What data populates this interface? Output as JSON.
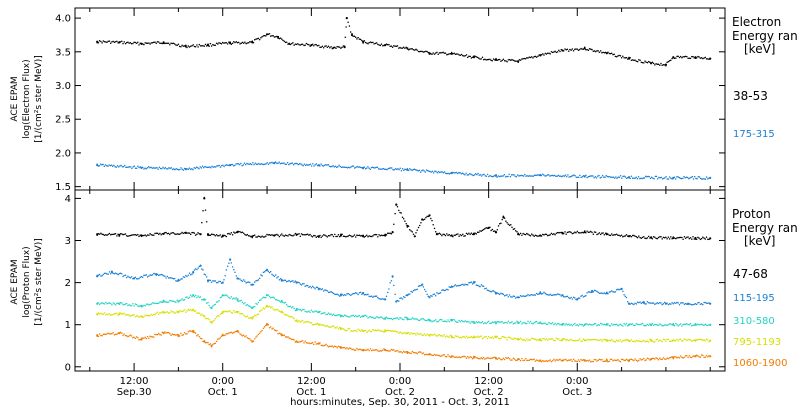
{
  "figure": {
    "xlabel": "hours:minutes, Sep. 30, 2011 - Oct. 3, 2011",
    "x_ticks": [
      {
        "time": "12:00",
        "date": "Sep.30"
      },
      {
        "time": "0:00",
        "date": "Oct. 1"
      },
      {
        "time": "12:00",
        "date": "Oct. 1"
      },
      {
        "time": "0:00",
        "date": "Oct. 2"
      },
      {
        "time": "12:00",
        "date": "Oct. 2"
      },
      {
        "time": "0:00",
        "date": "Oct. 3"
      }
    ]
  },
  "chart_data": [
    {
      "type": "scatter",
      "panel": "electron",
      "ylabel": [
        "ACE EPAM",
        "log(Electron Flux)",
        "[1/(cm²s ster MeV)]"
      ],
      "legend_title": [
        "Electron",
        "Energy ran",
        "[keV]"
      ],
      "x_unit": "hours since 2011-09-30 00:00",
      "xlim": [
        4,
        92
      ],
      "ylim": [
        1.45,
        4.15
      ],
      "yticks": [
        1.5,
        2.0,
        2.5,
        3.0,
        3.5,
        4.0
      ],
      "ytick_labels": [
        "1.5",
        "2.0",
        "2.5",
        "3.0",
        "3.5",
        "4.0"
      ],
      "series": [
        {
          "name": "38-53",
          "color": "#000000",
          "x": [
            7,
            10,
            13,
            16,
            19,
            22,
            25,
            28,
            30,
            31.5,
            33,
            36,
            39,
            40.5,
            40.8,
            41.5,
            43,
            46,
            49,
            52,
            55,
            58,
            61,
            64,
            67,
            70,
            73,
            76,
            79,
            82,
            84,
            85,
            88,
            90
          ],
          "y": [
            3.65,
            3.64,
            3.62,
            3.64,
            3.58,
            3.6,
            3.63,
            3.64,
            3.76,
            3.72,
            3.62,
            3.6,
            3.56,
            3.57,
            4.0,
            3.75,
            3.65,
            3.6,
            3.55,
            3.48,
            3.47,
            3.42,
            3.38,
            3.36,
            3.45,
            3.52,
            3.55,
            3.48,
            3.4,
            3.33,
            3.31,
            3.42,
            3.42,
            3.4
          ]
        },
        {
          "name": "175-315",
          "color": "#1b7fd4",
          "x": [
            7,
            13,
            19,
            25,
            31,
            37,
            43,
            49,
            55,
            61,
            67,
            73,
            79,
            85,
            90
          ],
          "y": [
            1.82,
            1.78,
            1.76,
            1.82,
            1.85,
            1.82,
            1.78,
            1.75,
            1.7,
            1.66,
            1.67,
            1.65,
            1.64,
            1.63,
            1.63
          ]
        }
      ]
    },
    {
      "type": "scatter",
      "panel": "proton",
      "ylabel": [
        "ACE EPAM",
        "log(Proton Flux)",
        "[1/(cm²s ster MeV)]"
      ],
      "legend_title": [
        "Proton",
        "Energy ran",
        "[keV]"
      ],
      "x_unit": "hours since 2011-09-30 00:00",
      "xlim": [
        4,
        92
      ],
      "ylim": [
        -0.1,
        4.2
      ],
      "yticks": [
        0,
        1,
        2,
        3,
        4
      ],
      "ytick_labels": [
        "0",
        "1",
        "2",
        "3",
        "4"
      ],
      "series": [
        {
          "name": "47-68",
          "color": "#000000",
          "x": [
            7,
            10,
            13,
            16,
            19,
            21,
            21.5,
            22,
            24,
            26,
            28,
            31,
            34,
            37,
            40,
            43,
            46,
            47,
            47.5,
            49,
            50,
            51,
            52,
            53,
            55,
            58,
            60,
            61,
            62,
            64,
            67,
            70,
            73,
            76,
            79,
            82,
            85,
            88,
            90
          ],
          "y": [
            3.15,
            3.13,
            3.12,
            3.16,
            3.18,
            3.15,
            4.0,
            3.15,
            3.1,
            3.2,
            3.1,
            3.12,
            3.14,
            3.1,
            3.12,
            3.1,
            3.12,
            3.2,
            3.85,
            3.35,
            3.1,
            3.5,
            3.6,
            3.15,
            3.12,
            3.15,
            3.3,
            3.2,
            3.55,
            3.15,
            3.12,
            3.18,
            3.2,
            3.15,
            3.1,
            3.07,
            3.06,
            3.06,
            3.05
          ]
        },
        {
          "name": "115-195",
          "color": "#1b7fd4",
          "x": [
            7,
            9,
            12,
            15,
            18,
            20,
            21,
            22,
            24,
            25,
            26,
            28,
            30,
            32,
            34,
            37,
            40,
            43,
            46,
            47,
            47.5,
            49,
            51,
            52,
            55,
            58,
            61,
            64,
            67,
            70,
            72,
            74,
            76,
            78,
            79,
            81,
            84,
            87,
            90
          ],
          "y": [
            2.15,
            2.25,
            2.1,
            2.2,
            2.05,
            2.25,
            2.4,
            2.05,
            2.0,
            2.55,
            2.1,
            1.95,
            2.3,
            2.05,
            2.0,
            1.85,
            1.7,
            1.75,
            1.6,
            2.15,
            1.55,
            1.7,
            1.95,
            1.65,
            1.9,
            2.0,
            1.75,
            1.65,
            1.75,
            1.7,
            1.6,
            1.8,
            1.75,
            1.85,
            1.5,
            1.52,
            1.5,
            1.5,
            1.5
          ]
        },
        {
          "name": "310-580",
          "color": "#22d3c3",
          "x": [
            7,
            10,
            13,
            16,
            18,
            20,
            21.5,
            22.5,
            24,
            26,
            28,
            30,
            32,
            34,
            37,
            40,
            43,
            46,
            49,
            52,
            55,
            58,
            61,
            64,
            67,
            70,
            73,
            76,
            79,
            82,
            85,
            88,
            90
          ],
          "y": [
            1.5,
            1.5,
            1.45,
            1.55,
            1.55,
            1.7,
            1.6,
            1.4,
            1.7,
            1.6,
            1.4,
            1.7,
            1.55,
            1.35,
            1.3,
            1.2,
            1.2,
            1.15,
            1.15,
            1.1,
            1.1,
            1.05,
            1.05,
            1.05,
            1.05,
            1.0,
            1.0,
            1.0,
            1.0,
            1.0,
            1.0,
            1.0,
            1.0
          ]
        },
        {
          "name": "795-1193",
          "color": "#d6e000",
          "x": [
            7,
            10,
            13,
            16,
            18,
            20,
            21.5,
            22.5,
            24,
            26,
            28,
            30,
            32,
            34,
            37,
            40,
            43,
            46,
            49,
            52,
            55,
            58,
            61,
            64,
            67,
            70,
            73,
            76,
            79,
            82,
            85,
            88,
            90
          ],
          "y": [
            1.25,
            1.25,
            1.2,
            1.3,
            1.3,
            1.35,
            1.2,
            1.05,
            1.3,
            1.3,
            1.15,
            1.45,
            1.3,
            1.1,
            1.0,
            0.9,
            0.85,
            0.85,
            0.8,
            0.75,
            0.72,
            0.7,
            0.7,
            0.65,
            0.65,
            0.65,
            0.63,
            0.62,
            0.62,
            0.62,
            0.63,
            0.63,
            0.62
          ]
        },
        {
          "name": "1060-1900",
          "color": "#f07d00",
          "x": [
            7,
            10,
            13,
            16,
            18,
            20,
            21.5,
            22.5,
            24,
            26,
            28,
            30,
            32,
            34,
            37,
            40,
            43,
            46,
            49,
            52,
            55,
            58,
            61,
            64,
            67,
            70,
            73,
            76,
            79,
            82,
            85,
            88,
            90
          ],
          "y": [
            0.75,
            0.8,
            0.65,
            0.8,
            0.75,
            0.85,
            0.6,
            0.5,
            0.75,
            0.85,
            0.6,
            1.0,
            0.75,
            0.6,
            0.55,
            0.45,
            0.4,
            0.4,
            0.35,
            0.3,
            0.25,
            0.22,
            0.2,
            0.18,
            0.15,
            0.15,
            0.15,
            0.15,
            0.15,
            0.18,
            0.22,
            0.25,
            0.25
          ]
        }
      ]
    }
  ]
}
